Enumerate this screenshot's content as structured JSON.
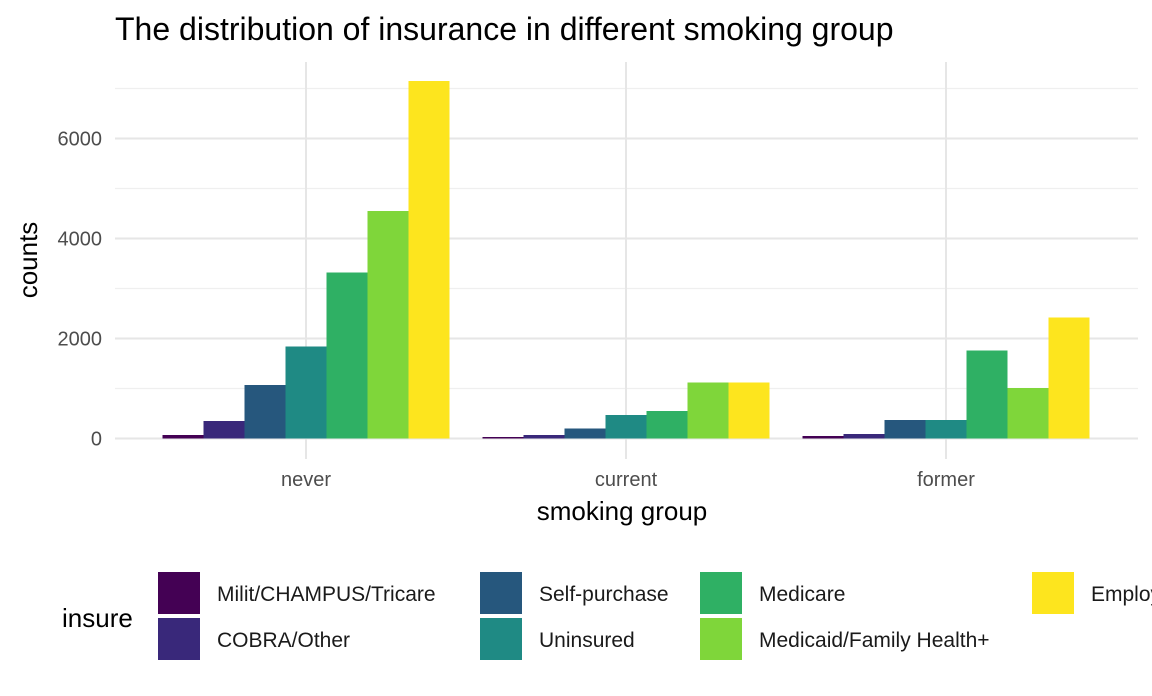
{
  "chart_data": {
    "type": "bar",
    "title": "The distribution of insurance in different smoking group",
    "xlabel": "smoking group",
    "ylabel": "counts",
    "categories": [
      "never",
      "current",
      "former"
    ],
    "ylim": [
      0,
      7500
    ],
    "yticks": [
      0,
      2000,
      4000,
      6000
    ],
    "grid": true,
    "legend": {
      "title": "insure",
      "position": "bottom"
    },
    "series": [
      {
        "name": "Milit/CHAMPUS/Tricare",
        "color": "#440154",
        "values": [
          70,
          30,
          50
        ]
      },
      {
        "name": "COBRA/Other",
        "color": "#39287a",
        "values": [
          350,
          70,
          90
        ]
      },
      {
        "name": "Self-purchase",
        "color": "#26577d",
        "values": [
          1070,
          200,
          370
        ]
      },
      {
        "name": "Uninsured",
        "color": "#1f8a84",
        "values": [
          1840,
          470,
          370
        ]
      },
      {
        "name": "Medicare",
        "color": "#2fb064",
        "values": [
          3320,
          550,
          1760
        ]
      },
      {
        "name": "Medicaid/Family Health+",
        "color": "#7fd63a",
        "values": [
          4550,
          1120,
          1010
        ]
      },
      {
        "name": "Employer",
        "color": "#fde51e",
        "values": [
          7150,
          1120,
          2420
        ]
      }
    ]
  }
}
